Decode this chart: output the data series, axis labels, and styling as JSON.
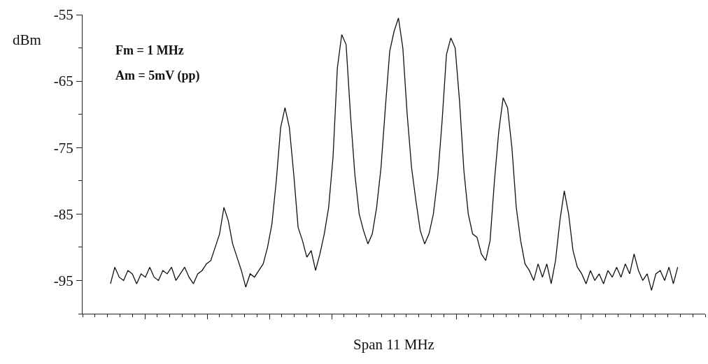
{
  "chart_data": {
    "type": "line",
    "xlabel": "Span 11 MHz",
    "ylabel": "dBm",
    "annotations": [
      "Fm = 1 MHz",
      "Am = 5mV (pp)"
    ],
    "categories": [
      null,
      null,
      null,
      null,
      null,
      null,
      null,
      null,
      null,
      null,
      null,
      null,
      null,
      null,
      null,
      null,
      null,
      null,
      null,
      null,
      null,
      null,
      null,
      null,
      null,
      null,
      null,
      null,
      null,
      null,
      null,
      null,
      null,
      null,
      null,
      null,
      null,
      null,
      null,
      null,
      null,
      null,
      null,
      null,
      null,
      null,
      null,
      null,
      null,
      null,
      null,
      null,
      null,
      null,
      null,
      null,
      null,
      null,
      null,
      null,
      null,
      null,
      null,
      null,
      null,
      null,
      null,
      null,
      null,
      null,
      null,
      null,
      null,
      null,
      null,
      null,
      null,
      null,
      null,
      null,
      null,
      null,
      null,
      null,
      null,
      null,
      null,
      null,
      null,
      null,
      null,
      null,
      null,
      null,
      null,
      null,
      null,
      null,
      null,
      null,
      null,
      null,
      null,
      null,
      null,
      null,
      null,
      null,
      null,
      null,
      null,
      null,
      null,
      null,
      null,
      null,
      null,
      null,
      null,
      null,
      null,
      null,
      null,
      null,
      null,
      null,
      null,
      null,
      null,
      null,
      null
    ],
    "series": [
      {
        "color": "#111111",
        "values": [
          -95.5,
          -93,
          -94.5,
          -95,
          -93.5,
          -94,
          -95.5,
          -94,
          -94.5,
          -93,
          -94.5,
          -95,
          -93.5,
          -94,
          -93,
          -95,
          -94,
          -93,
          -94.5,
          -95.5,
          -94,
          -93.5,
          -92.5,
          -92,
          -90,
          -88,
          -84,
          -86,
          -89.5,
          -91.5,
          -93.5,
          -96,
          -94,
          -94.5,
          -93.5,
          -92.5,
          -90,
          -86.5,
          -80,
          -72,
          -69,
          -72,
          -79,
          -87,
          -89,
          -91.5,
          -90.5,
          -93.5,
          -91,
          -88,
          -84,
          -76.5,
          -63,
          -58,
          -59.5,
          -70,
          -79,
          -85,
          -87.5,
          -89.5,
          -88,
          -84,
          -78,
          -69,
          -60.5,
          -57.5,
          -55.5,
          -60,
          -70,
          -78,
          -83,
          -87.5,
          -89.5,
          -88,
          -85,
          -79.5,
          -71,
          -61,
          -58.5,
          -60,
          -68,
          -78.5,
          -85,
          -88,
          -88.5,
          -91,
          -92,
          -89,
          -80,
          -72.5,
          -67.5,
          -69,
          -75,
          -84,
          -89,
          -92.5,
          -93.5,
          -95,
          -92.5,
          -94.5,
          -92.5,
          -95.5,
          -92,
          -86,
          -81.5,
          -85,
          -90.5,
          -93,
          -94,
          -95.5,
          -93.5,
          -95,
          -94,
          -95.5,
          -93.5,
          -94.5,
          -93,
          -94.5,
          -92.5,
          -94,
          -91,
          -93.5,
          -95,
          -94,
          -96.5,
          -94,
          -93.5,
          -95,
          -93,
          -95.5,
          -93
        ]
      }
    ],
    "ylim": [
      -100,
      -55
    ],
    "yticks": [
      -55,
      -65,
      -75,
      -85,
      -95
    ],
    "marker": "none",
    "line_style": "solid"
  }
}
